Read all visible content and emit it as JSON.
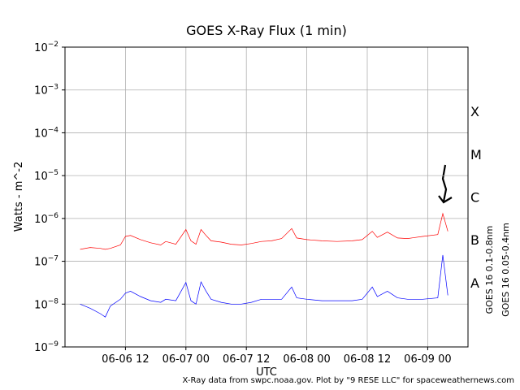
{
  "chart_data": {
    "type": "line",
    "title": "GOES X-Ray Flux (1 min)",
    "xlabel": "UTC",
    "ylabel": "Watts - m^-2",
    "yscale": "log",
    "grid": true,
    "footer": "X-Ray data from swpc.noaa.gov. Plot by \"9 RESE LLC\" for spaceweathernews.com",
    "flare_classes": [
      "A",
      "B",
      "C",
      "M",
      "X"
    ],
    "xlim": [
      "06-06 00",
      "06-09 08"
    ],
    "xticks": [
      "06-06 12",
      "06-07 00",
      "06-07 12",
      "06-08 00",
      "06-08 12",
      "06-09 00"
    ],
    "ylim": [
      1e-09,
      0.01
    ],
    "yticks": [
      {
        "value": 1e-09,
        "label": "10−9"
      },
      {
        "value": 1e-08,
        "label": "10−8"
      },
      {
        "value": 1e-07,
        "label": "10−7"
      },
      {
        "value": 1e-06,
        "label": "10−6"
      },
      {
        "value": 1e-05,
        "label": "10−5"
      },
      {
        "value": 0.0001,
        "label": "10−4"
      },
      {
        "value": 0.001,
        "label": "10−3"
      },
      {
        "value": 0.01,
        "label": "10−2"
      }
    ],
    "x": [
      "06-06 03",
      "06-06 05",
      "06-06 07",
      "06-06 08",
      "06-06 09",
      "06-06 11",
      "06-06 12",
      "06-06 13",
      "06-06 15",
      "06-06 17",
      "06-06 19",
      "06-06 20",
      "06-06 22",
      "06-07 00",
      "06-07 01",
      "06-07 02",
      "06-07 03",
      "06-07 04",
      "06-07 05",
      "06-07 07",
      "06-07 09",
      "06-07 11",
      "06-07 13",
      "06-07 15",
      "06-07 17",
      "06-07 19",
      "06-07 21",
      "06-07 22",
      "06-08 00",
      "06-08 03",
      "06-08 06",
      "06-08 09",
      "06-08 11",
      "06-08 13",
      "06-08 14",
      "06-08 16",
      "06-08 18",
      "06-08 20",
      "06-08 23",
      "06-09 02",
      "06-09 03",
      "06-09 04"
    ],
    "series": [
      {
        "name": "GOES 16 0.1-0.8nm",
        "color": "#ff0000",
        "values": [
          1.9e-07,
          2.1e-07,
          2e-07,
          1.9e-07,
          2e-07,
          2.4e-07,
          3.8e-07,
          4e-07,
          3.2e-07,
          2.7e-07,
          2.4e-07,
          2.9e-07,
          2.5e-07,
          5.5e-07,
          3e-07,
          2.5e-07,
          5.5e-07,
          4e-07,
          3e-07,
          2.8e-07,
          2.5e-07,
          2.4e-07,
          2.6e-07,
          2.9e-07,
          3e-07,
          3.4e-07,
          5.8e-07,
          3.5e-07,
          3.2e-07,
          3e-07,
          2.9e-07,
          3e-07,
          3.2e-07,
          5e-07,
          3.6e-07,
          4.8e-07,
          3.5e-07,
          3.4e-07,
          3.8e-07,
          4.2e-07,
          1.3e-06,
          5e-07
        ]
      },
      {
        "name": "GOES 16 0.05-0.4nm",
        "color": "#0000ff",
        "values": [
          1e-08,
          8e-09,
          6e-09,
          5e-09,
          9e-09,
          1.3e-08,
          1.8e-08,
          2e-08,
          1.5e-08,
          1.2e-08,
          1.1e-08,
          1.3e-08,
          1.2e-08,
          3.2e-08,
          1.2e-08,
          1e-08,
          3.3e-08,
          2e-08,
          1.3e-08,
          1.1e-08,
          1e-08,
          1e-08,
          1.1e-08,
          1.3e-08,
          1.3e-08,
          1.3e-08,
          2.5e-08,
          1.4e-08,
          1.3e-08,
          1.2e-08,
          1.2e-08,
          1.2e-08,
          1.3e-08,
          2.5e-08,
          1.5e-08,
          2e-08,
          1.4e-08,
          1.3e-08,
          1.3e-08,
          1.4e-08,
          1.4e-07,
          1.6e-08
        ]
      }
    ]
  }
}
